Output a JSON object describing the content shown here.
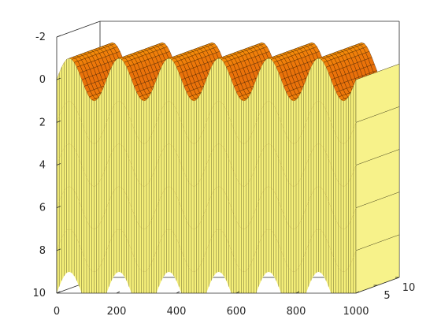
{
  "chart_data": {
    "type": "surface",
    "title": "",
    "xlabel": "",
    "ylabel": "",
    "zlabel": "",
    "x_range": [
      0,
      1000
    ],
    "y_range": [
      0,
      10
    ],
    "z_range": [
      -2,
      10
    ],
    "z_reversed": true,
    "x_ticks": [
      "0",
      "200",
      "400",
      "600",
      "800",
      "1000"
    ],
    "y_ticks": [
      "5",
      "10"
    ],
    "z_ticks": [
      "-2",
      "0",
      "2",
      "4",
      "6",
      "8",
      "10"
    ],
    "grid": false,
    "colormap": "hot",
    "layers": [
      {
        "offset": 0,
        "wave": "sin",
        "amplitude": 1,
        "cycles": 6
      },
      {
        "offset": 2,
        "wave": "sin",
        "amplitude": 1,
        "cycles": 6
      },
      {
        "offset": 4,
        "wave": "sin",
        "amplitude": 1,
        "cycles": 6
      },
      {
        "offset": 6,
        "wave": "sin",
        "amplitude": 1,
        "cycles": 6
      },
      {
        "offset": 8,
        "wave": "sin",
        "amplitude": 1,
        "cycles": 6
      }
    ]
  }
}
